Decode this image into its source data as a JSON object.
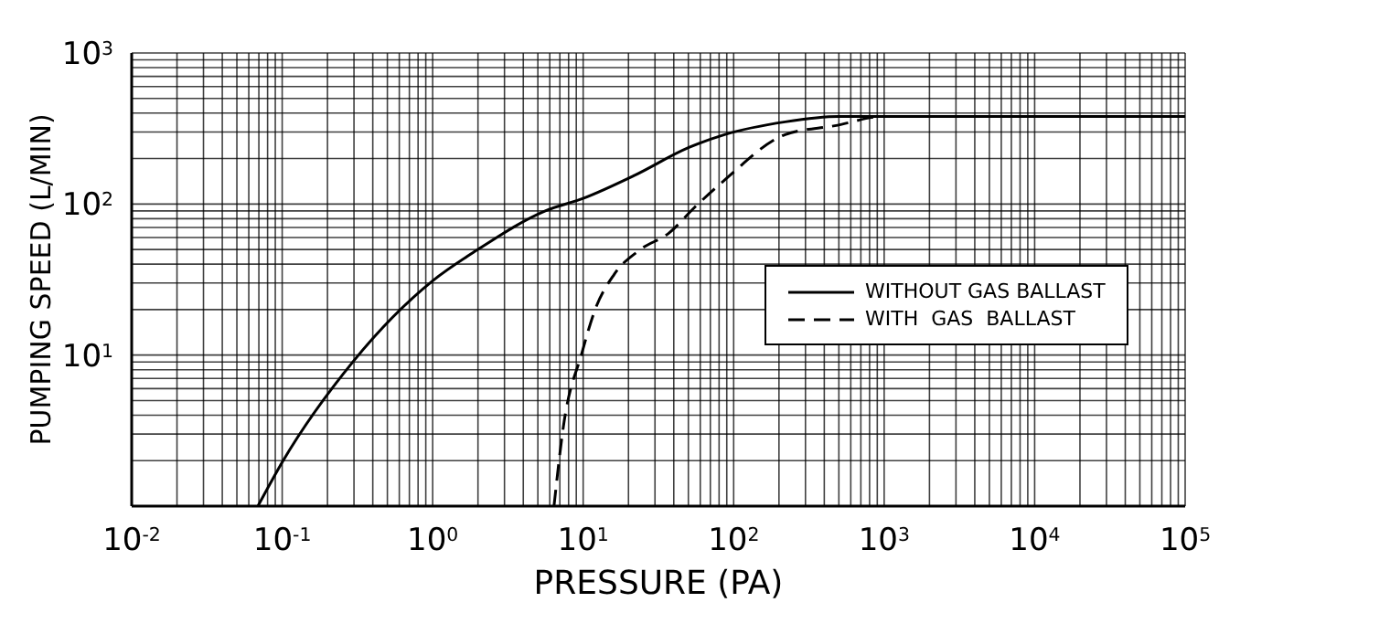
{
  "chart_data": {
    "type": "line",
    "xlabel": "PRESSURE (PA)",
    "ylabel": "PUMPING SPEED (L/MIN)",
    "log": "xy",
    "grid": true,
    "legend": "right",
    "xlim": [
      0.01,
      100000
    ],
    "ylim": [
      1,
      1000
    ],
    "xticks": [
      {
        "value": 0.01,
        "label": "10$^{-2}$"
      },
      {
        "value": 0.1,
        "label": "10$^{-1}$"
      },
      {
        "value": 1,
        "label": "10$^{0}$"
      },
      {
        "value": 10,
        "label": "10$^{1}$"
      },
      {
        "value": 100,
        "label": "10$^{2}$"
      },
      {
        "value": 1000,
        "label": "10$^{3}$"
      },
      {
        "value": 10000,
        "label": "10$^{4}$"
      },
      {
        "value": 100000,
        "label": "10$^{5}$"
      }
    ],
    "yticks": [
      {
        "value": 1,
        "label": null
      },
      {
        "value": 10,
        "label": "10$^{1}$"
      },
      {
        "value": 100,
        "label": "10$^{2}$"
      },
      {
        "value": 1000,
        "label": "10$^{3}$"
      }
    ],
    "series": [
      {
        "name": "WITHOUT GAS BALLAST",
        "color": "#000000",
        "line_style": "solid",
        "x": [
          0.069,
          0.1,
          0.3,
          1,
          2,
          5.6,
          10,
          22,
          50,
          87,
          220,
          500,
          100000
        ],
        "values": [
          1,
          1.95,
          9.2,
          31,
          50,
          90,
          109,
          155,
          236,
          288,
          350,
          380,
          380
        ]
      },
      {
        "name": "WITH  GAS  BALLAST",
        "color": "#000000",
        "line_style": "dashed",
        "x": [
          6.4,
          7.4,
          9.8,
          12,
          16,
          24,
          37,
          55,
          87,
          220,
          470,
          1000,
          100000
        ],
        "values": [
          1,
          3.4,
          10.3,
          20,
          34,
          50,
          64,
          95,
          144,
          288,
          330,
          380,
          380
        ]
      }
    ]
  }
}
